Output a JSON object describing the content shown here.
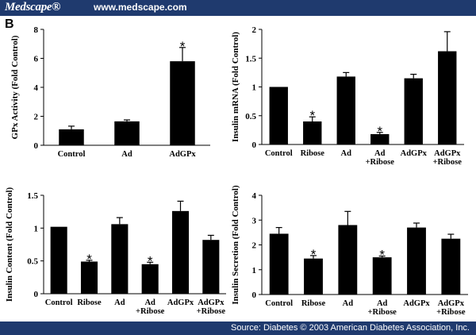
{
  "header": {
    "logo": "Medscape®",
    "url": "www.medscape.com"
  },
  "panel_label": "B",
  "footer": {
    "source": "Source: Diabetes © 2003 American Diabetes Association, Inc."
  },
  "colors": {
    "banner": "#1f3a6e",
    "bar": "#000000"
  },
  "chart_data": [
    {
      "type": "bar",
      "ylabel": "GPx Activity (Fold Control)",
      "ylim": [
        0,
        8
      ],
      "yticks": [
        "0",
        "2",
        "4",
        "6",
        "8"
      ],
      "categories": [
        [
          "Control"
        ],
        [
          "Ad"
        ],
        [
          "AdGPx"
        ]
      ],
      "values": [
        1.1,
        1.65,
        5.8
      ],
      "errors": [
        0.22,
        0.1,
        0.95
      ],
      "significant": [
        false,
        false,
        true
      ]
    },
    {
      "type": "bar",
      "ylabel": "Insulin mRNA (Fold Control)",
      "ylim": [
        0,
        2
      ],
      "yticks": [
        "0",
        "0.5",
        "1",
        "1.5",
        "2"
      ],
      "categories": [
        [
          "Control"
        ],
        [
          "Ribose"
        ],
        [
          "Ad"
        ],
        [
          "Ad",
          "+Ribose"
        ],
        [
          "AdGPx"
        ],
        [
          "AdGPx",
          "+Ribose"
        ]
      ],
      "values": [
        1.0,
        0.4,
        1.18,
        0.18,
        1.15,
        1.62
      ],
      "errors": [
        0,
        0.08,
        0.07,
        0.03,
        0.07,
        0.34
      ],
      "significant": [
        false,
        true,
        false,
        true,
        false,
        false
      ]
    },
    {
      "type": "bar",
      "ylabel": "Insulin Content (Fold Control)",
      "ylim": [
        0,
        1.5
      ],
      "yticks": [
        "0",
        "0.5",
        "1",
        "1.5"
      ],
      "categories": [
        [
          "Control"
        ],
        [
          "Ribose"
        ],
        [
          "Ad"
        ],
        [
          "Ad",
          "+Ribose"
        ],
        [
          "AdGPx"
        ],
        [
          "AdGPx",
          "+Ribose"
        ]
      ],
      "values": [
        1.02,
        0.49,
        1.06,
        0.45,
        1.26,
        0.82
      ],
      "errors": [
        0,
        0.02,
        0.1,
        0.03,
        0.15,
        0.07
      ],
      "significant": [
        false,
        true,
        false,
        true,
        false,
        false
      ]
    },
    {
      "type": "bar",
      "ylabel": "Insulin Secretion (Fold Control)",
      "ylim": [
        0,
        4
      ],
      "yticks": [
        "0",
        "1",
        "2",
        "3",
        "4"
      ],
      "categories": [
        [
          "Control"
        ],
        [
          "Ribose"
        ],
        [
          "Ad"
        ],
        [
          "Ad",
          "+Ribose"
        ],
        [
          "AdGPx"
        ],
        [
          "AdGPx",
          "+Ribose"
        ]
      ],
      "values": [
        2.45,
        1.45,
        2.8,
        1.5,
        2.7,
        2.25
      ],
      "errors": [
        0.25,
        0.12,
        0.55,
        0.05,
        0.18,
        0.18
      ],
      "significant": [
        false,
        true,
        false,
        true,
        false,
        false
      ]
    }
  ]
}
